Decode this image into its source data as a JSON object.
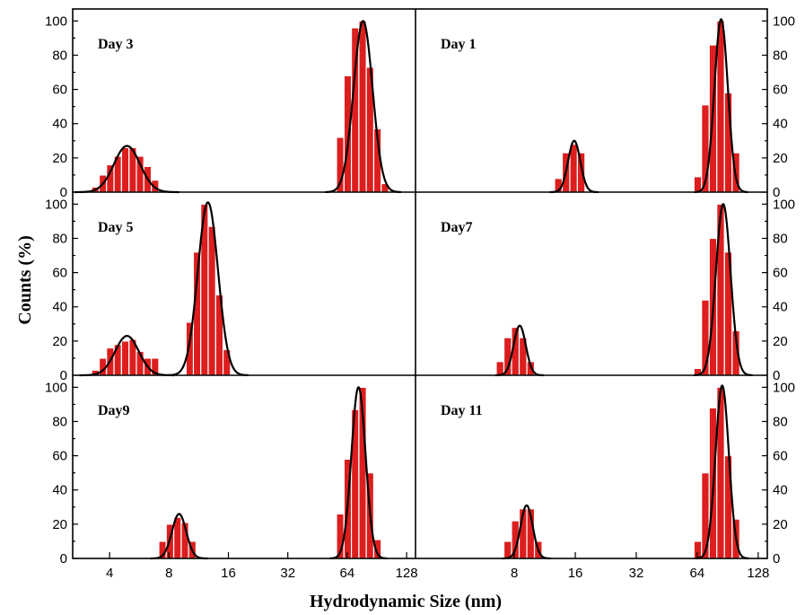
{
  "chart_data": {
    "type": "bar",
    "xlabel": "Hydrodynamic Size (nm)",
    "ylabel": "Counts (%)",
    "x_scale": "log2",
    "xlim": [
      2.6,
      142
    ],
    "ylim": [
      0,
      107
    ],
    "left_x_ticks": [
      "4",
      "8",
      "16",
      "32",
      "64",
      "128"
    ],
    "right_x_ticks": [
      "8",
      "16",
      "32",
      "64",
      "128"
    ],
    "y_ticks": [
      "0",
      "20",
      "40",
      "60",
      "80",
      "100"
    ],
    "colors": {
      "bar": "#dc1e1e",
      "bar_edge": "#7a0a0a",
      "fit": "#000000"
    },
    "panels": [
      {
        "label": "Day 3",
        "bars": [
          [
            3.39,
            3
          ],
          [
            3.7,
            10
          ],
          [
            4.03,
            16
          ],
          [
            4.4,
            21
          ],
          [
            4.8,
            26
          ],
          [
            5.24,
            26
          ],
          [
            5.71,
            21
          ],
          [
            6.23,
            15
          ],
          [
            6.8,
            7
          ],
          [
            59.0,
            32
          ],
          [
            64.4,
            68
          ],
          [
            70.2,
            96
          ],
          [
            76.6,
            100
          ],
          [
            83.5,
            73
          ],
          [
            91.1,
            37
          ],
          [
            99.4,
            5
          ]
        ],
        "fit": [
          {
            "a": 27,
            "mu": 4.9,
            "sigma": 0.22
          },
          {
            "a": 100,
            "mu": 77,
            "sigma": 0.16
          }
        ]
      },
      {
        "label": "Day 1",
        "bars": [
          [
            13.2,
            8
          ],
          [
            14.4,
            23
          ],
          [
            15.7,
            28
          ],
          [
            17.1,
            23
          ],
          [
            64.4,
            9
          ],
          [
            70.2,
            51
          ],
          [
            76.6,
            86
          ],
          [
            83.5,
            100
          ],
          [
            91.1,
            58
          ],
          [
            99.4,
            23
          ]
        ],
        "fit": [
          {
            "a": 30,
            "mu": 15.8,
            "sigma": 0.1
          },
          {
            "a": 101,
            "mu": 84,
            "sigma": 0.11
          }
        ]
      },
      {
        "label": "Day 5",
        "bars": [
          [
            3.39,
            3
          ],
          [
            3.7,
            10
          ],
          [
            4.03,
            16
          ],
          [
            4.4,
            18
          ],
          [
            4.8,
            20
          ],
          [
            5.24,
            21
          ],
          [
            5.71,
            14
          ],
          [
            6.23,
            10
          ],
          [
            6.8,
            10
          ],
          [
            10.2,
            31
          ],
          [
            11.1,
            72
          ],
          [
            12.1,
            100
          ],
          [
            13.2,
            87
          ],
          [
            14.4,
            47
          ],
          [
            15.7,
            15
          ]
        ],
        "fit": [
          {
            "a": 23,
            "mu": 4.9,
            "sigma": 0.2
          },
          {
            "a": 101,
            "mu": 12.6,
            "sigma": 0.17
          }
        ]
      },
      {
        "label": "Day7",
        "bars": [
          [
            6.8,
            8
          ],
          [
            7.42,
            22
          ],
          [
            8.09,
            28
          ],
          [
            8.83,
            22
          ],
          [
            9.63,
            8
          ],
          [
            64.4,
            4
          ],
          [
            70.2,
            44
          ],
          [
            76.6,
            80
          ],
          [
            83.5,
            100
          ],
          [
            91.1,
            72
          ],
          [
            99.4,
            26
          ]
        ],
        "fit": [
          {
            "a": 29,
            "mu": 8.5,
            "sigma": 0.1
          },
          {
            "a": 100,
            "mu": 86,
            "sigma": 0.12
          }
        ]
      },
      {
        "label": "Day9",
        "bars": [
          [
            7.42,
            10
          ],
          [
            8.09,
            20
          ],
          [
            8.83,
            24
          ],
          [
            9.63,
            21
          ],
          [
            10.5,
            10
          ],
          [
            59.0,
            26
          ],
          [
            64.4,
            58
          ],
          [
            70.2,
            87
          ],
          [
            76.6,
            100
          ],
          [
            83.5,
            50
          ],
          [
            91.1,
            11
          ]
        ],
        "fit": [
          {
            "a": 26,
            "mu": 9.0,
            "sigma": 0.12
          },
          {
            "a": 100,
            "mu": 73,
            "sigma": 0.12
          }
        ]
      },
      {
        "label": "Day 11",
        "bars": [
          [
            7.42,
            10
          ],
          [
            8.09,
            22
          ],
          [
            8.83,
            29
          ],
          [
            9.63,
            29
          ],
          [
            10.5,
            10
          ],
          [
            64.4,
            10
          ],
          [
            70.2,
            50
          ],
          [
            76.6,
            88
          ],
          [
            83.5,
            100
          ],
          [
            91.1,
            60
          ],
          [
            99.4,
            23
          ]
        ],
        "fit": [
          {
            "a": 31,
            "mu": 9.2,
            "sigma": 0.1
          },
          {
            "a": 101,
            "mu": 85,
            "sigma": 0.11
          }
        ]
      }
    ]
  }
}
